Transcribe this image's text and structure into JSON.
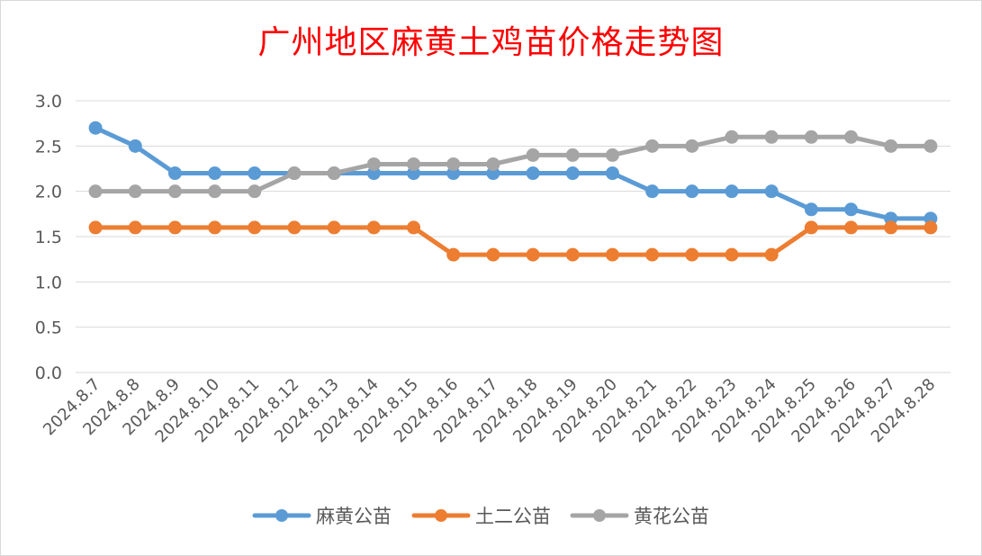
{
  "chart_data": {
    "type": "line",
    "title": "广州地区麻黄土鸡苗价格走势图",
    "xlabel": "",
    "ylabel": "",
    "ylim": [
      0,
      3.0
    ],
    "yticks": [
      "0.0",
      "0.5",
      "1.0",
      "1.5",
      "2.0",
      "2.5",
      "3.0"
    ],
    "grid": true,
    "legend_position": "bottom",
    "categories": [
      "2024.8.7",
      "2024.8.8",
      "2024.8.9",
      "2024.8.10",
      "2024.8.11",
      "2024.8.12",
      "2024.8.13",
      "2024.8.14",
      "2024.8.15",
      "2024.8.16",
      "2024.8.17",
      "2024.8.18",
      "2024.8.19",
      "2024.8.20",
      "2024.8.21",
      "2024.8.22",
      "2024.8.23",
      "2024.8.24",
      "2024.8.25",
      "2024.8.26",
      "2024.8.27",
      "2024.8.28"
    ],
    "series": [
      {
        "name": "麻黄公苗",
        "color": "#5b9bd5",
        "values": [
          2.7,
          2.5,
          2.2,
          2.2,
          2.2,
          2.2,
          2.2,
          2.2,
          2.2,
          2.2,
          2.2,
          2.2,
          2.2,
          2.2,
          2.0,
          2.0,
          2.0,
          2.0,
          1.8,
          1.8,
          1.7,
          1.7
        ]
      },
      {
        "name": "土二公苗",
        "color": "#ed7d31",
        "values": [
          1.6,
          1.6,
          1.6,
          1.6,
          1.6,
          1.6,
          1.6,
          1.6,
          1.6,
          1.3,
          1.3,
          1.3,
          1.3,
          1.3,
          1.3,
          1.3,
          1.3,
          1.3,
          1.6,
          1.6,
          1.6,
          1.6
        ]
      },
      {
        "name": "黄花公苗",
        "color": "#a5a5a5",
        "values": [
          2.0,
          2.0,
          2.0,
          2.0,
          2.0,
          2.2,
          2.2,
          2.3,
          2.3,
          2.3,
          2.3,
          2.4,
          2.4,
          2.4,
          2.5,
          2.5,
          2.6,
          2.6,
          2.6,
          2.6,
          2.5,
          2.5
        ]
      }
    ]
  }
}
